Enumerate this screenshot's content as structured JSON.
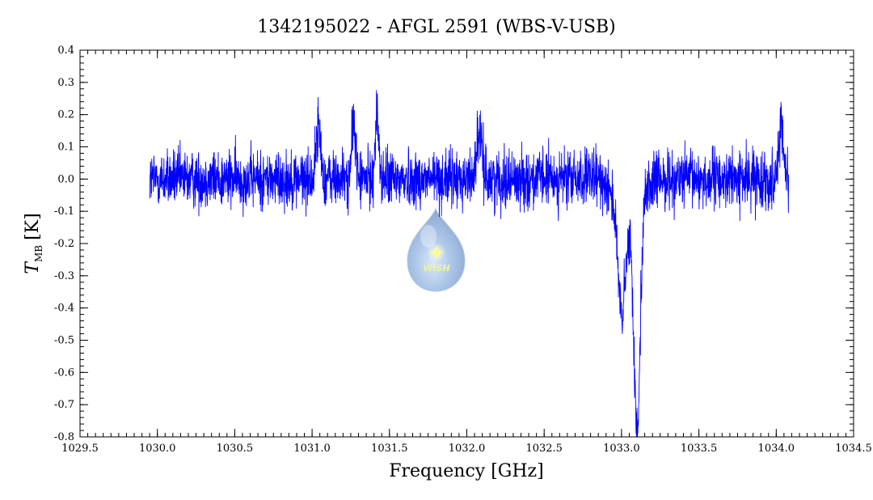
{
  "chart_data": {
    "type": "line",
    "title": "1342195022 - AFGL 2591 (WBS-V-USB)",
    "xlabel": "Frequency [GHz]",
    "ylabel_main": "T",
    "ylabel_sub": "MB",
    "ylabel_unit": "[K]",
    "xlim": [
      1029.5,
      1034.5
    ],
    "ylim": [
      -0.8,
      0.4
    ],
    "xticks": [
      "1029.5",
      "1030.0",
      "1030.5",
      "1031.0",
      "1031.5",
      "1032.0",
      "1032.5",
      "1033.0",
      "1033.5",
      "1034.0",
      "1034.5"
    ],
    "yticks": [
      "0.4",
      "0.3",
      "0.2",
      "0.1",
      "0.0",
      "-0.1",
      "-0.2",
      "-0.3",
      "-0.4",
      "-0.5",
      "-0.6",
      "-0.7",
      "-0.8"
    ],
    "series": [
      {
        "color": "#0000ff",
        "x_range": [
          1029.95,
          1034.08
        ],
        "noise_rms": 0.045,
        "features": [
          {
            "center": 1031.04,
            "peak": 0.16,
            "width": 0.015
          },
          {
            "center": 1031.27,
            "peak": 0.18,
            "width": 0.012
          },
          {
            "center": 1031.42,
            "peak": 0.19,
            "width": 0.012
          },
          {
            "center": 1032.08,
            "peak": 0.13,
            "width": 0.02
          },
          {
            "center": 1033.0,
            "peak": -0.33,
            "width": 0.025
          },
          {
            "center": 1033.1,
            "peak": -0.68,
            "width": 0.02
          },
          {
            "center": 1034.03,
            "peak": 0.17,
            "width": 0.015
          }
        ],
        "points": [
          [
            1029.95,
            0.01
          ],
          [
            1030.0,
            0.0
          ],
          [
            1030.1,
            0.01
          ],
          [
            1030.25,
            -0.02
          ],
          [
            1030.5,
            0.0
          ],
          [
            1030.75,
            0.0
          ],
          [
            1031.0,
            0.02
          ],
          [
            1031.04,
            0.16
          ],
          [
            1031.1,
            0.01
          ],
          [
            1031.27,
            0.18
          ],
          [
            1031.35,
            0.02
          ],
          [
            1031.42,
            0.19
          ],
          [
            1031.5,
            0.02
          ],
          [
            1031.75,
            0.0
          ],
          [
            1032.0,
            0.0
          ],
          [
            1032.08,
            0.13
          ],
          [
            1032.15,
            0.02
          ],
          [
            1032.5,
            0.0
          ],
          [
            1032.85,
            -0.02
          ],
          [
            1033.0,
            -0.33
          ],
          [
            1033.05,
            -0.15
          ],
          [
            1033.1,
            -0.68
          ],
          [
            1033.15,
            -0.15
          ],
          [
            1033.25,
            0.0
          ],
          [
            1033.5,
            0.0
          ],
          [
            1034.0,
            0.02
          ],
          [
            1034.03,
            0.17
          ],
          [
            1034.08,
            0.02
          ]
        ]
      }
    ],
    "grid": false,
    "legend": "none"
  },
  "watermark": {
    "text": "WISH",
    "star_color": "#ffff66"
  }
}
